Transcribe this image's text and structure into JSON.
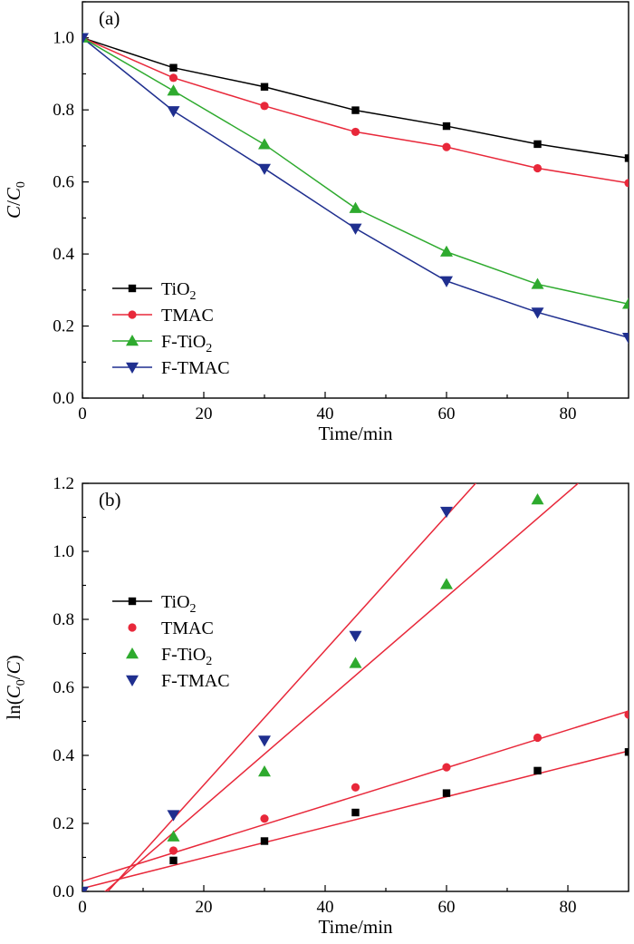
{
  "chart_data": [
    {
      "type": "line",
      "panel_label": "(a)",
      "xlabel": "Time/min",
      "ylabel": "C/C0",
      "xlim": [
        0,
        90
      ],
      "ylim": [
        0,
        1.1
      ],
      "x_ticks": [
        0,
        20,
        40,
        60,
        80
      ],
      "x_tick_labels": [
        "0",
        "20",
        "40",
        "60",
        "80"
      ],
      "y_ticks": [
        0,
        0.2,
        0.4,
        0.6,
        0.8,
        1.0
      ],
      "y_tick_labels": [
        "0.0",
        "0.2",
        "0.4",
        "0.6",
        "0.8",
        "1.0"
      ],
      "legend_position": "bottom-left",
      "x": [
        0,
        15,
        30,
        45,
        60,
        75,
        90
      ],
      "series": [
        {
          "name": "TiO2",
          "marker": "square",
          "color": "#000000",
          "line_color": "#000000",
          "values": [
            1.0,
            0.917,
            0.864,
            0.799,
            0.755,
            0.705,
            0.666
          ]
        },
        {
          "name": "TMAC",
          "marker": "circle",
          "color": "#e8283a",
          "line_color": "#e8283a",
          "values": [
            1.0,
            0.889,
            0.811,
            0.739,
            0.697,
            0.638,
            0.597
          ]
        },
        {
          "name": "F-TiO2",
          "marker": "triangle-up",
          "color": "#2eaa2e",
          "line_color": "#2eaa2e",
          "values": [
            1.0,
            0.853,
            0.704,
            0.527,
            0.406,
            0.316,
            0.261
          ]
        },
        {
          "name": "F-TMAC",
          "marker": "triangle-down",
          "color": "#1f2f8f",
          "line_color": "#1f2f8f",
          "values": [
            1.0,
            0.797,
            0.637,
            0.471,
            0.325,
            0.238,
            0.168
          ]
        }
      ]
    },
    {
      "type": "scatter",
      "panel_label": "(b)",
      "xlabel": "Time/min",
      "ylabel": "ln(C0/C)",
      "xlim": [
        0,
        90
      ],
      "ylim": [
        0,
        1.2
      ],
      "x_ticks": [
        0,
        20,
        40,
        60,
        80
      ],
      "x_tick_labels": [
        "0",
        "20",
        "40",
        "60",
        "80"
      ],
      "y_ticks": [
        0,
        0.2,
        0.4,
        0.6,
        0.8,
        1.0,
        1.2
      ],
      "y_tick_labels": [
        "0.0",
        "0.2",
        "0.4",
        "0.6",
        "0.8",
        "1.0",
        "1.2"
      ],
      "legend_position": "upper-left",
      "fit_line_color": "#e8283a",
      "x": [
        0,
        15,
        30,
        45,
        60,
        75,
        90
      ],
      "series": [
        {
          "name": "TiO2",
          "marker": "square",
          "color": "#000000",
          "values": [
            0.0,
            0.091,
            0.148,
            0.232,
            0.289,
            0.355,
            0.41
          ],
          "fit": {
            "slope": 0.00449,
            "intercept": 0.009
          }
        },
        {
          "name": "TMAC",
          "marker": "circle",
          "color": "#e8283a",
          "values": [
            0.0,
            0.12,
            0.214,
            0.306,
            0.365,
            0.452,
            0.52
          ],
          "fit": {
            "slope": 0.00556,
            "intercept": 0.03
          }
        },
        {
          "name": "F-TiO2",
          "marker": "triangle-up",
          "color": "#2eaa2e",
          "values": [
            0.0,
            0.161,
            0.352,
            0.671,
            0.903,
            1.152,
            null
          ],
          "fit": {
            "slope": 0.0154,
            "intercept": -0.058
          }
        },
        {
          "name": "F-TMAC",
          "marker": "triangle-down",
          "color": "#1f2f8f",
          "values": [
            0.0,
            0.225,
            0.444,
            0.752,
            1.117,
            null,
            null
          ],
          "fit": {
            "slope": 0.0198,
            "intercept": -0.083
          }
        }
      ]
    }
  ]
}
